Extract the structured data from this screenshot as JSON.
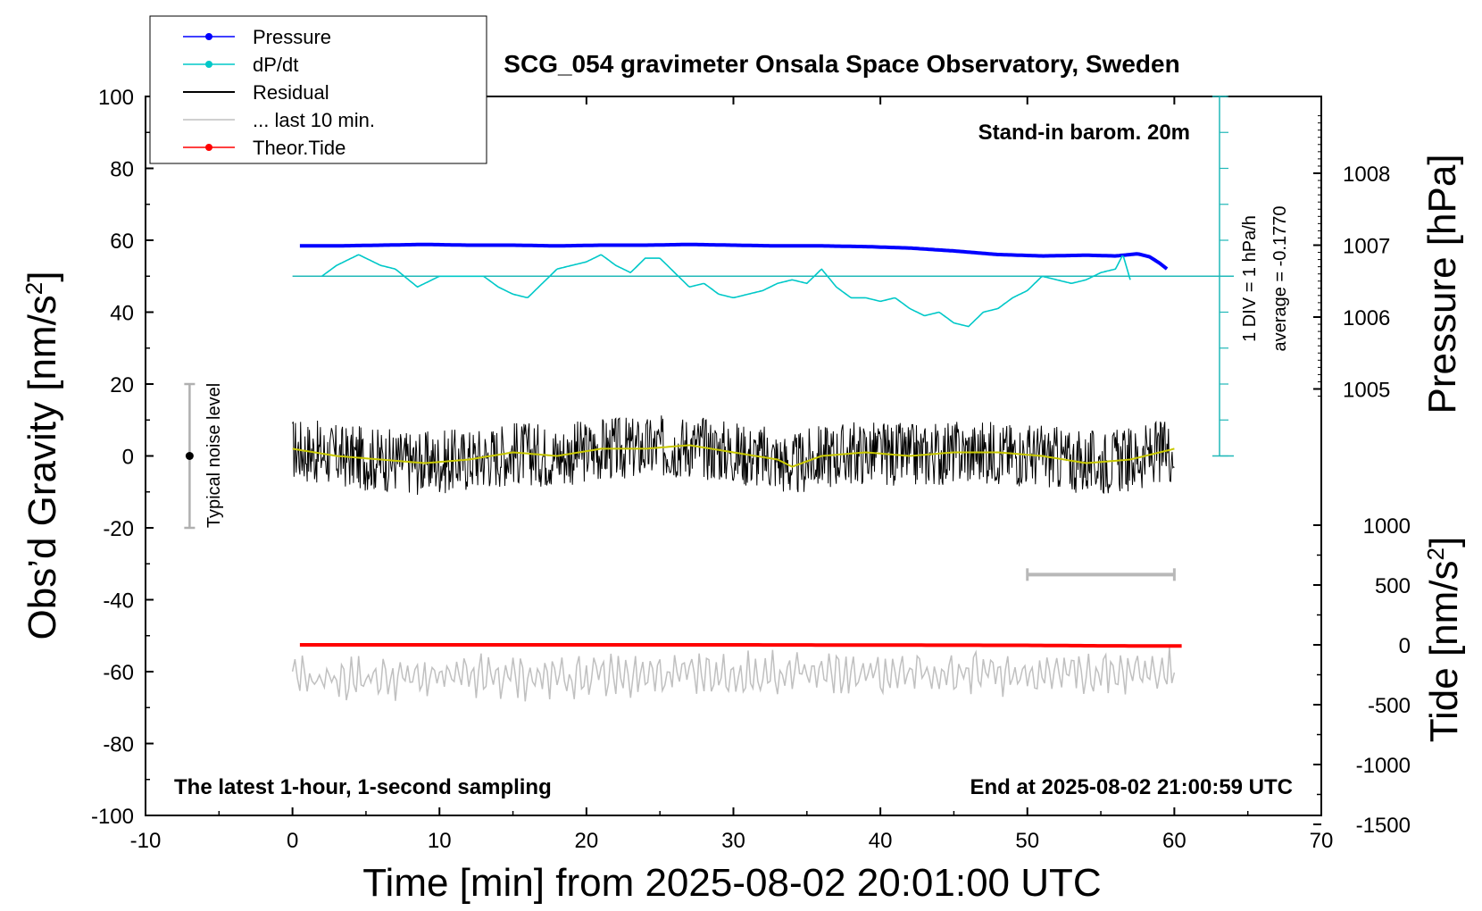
{
  "chart_data": {
    "type": "line",
    "title": "SCG_054 gravimeter Onsala Space Observatory, Sweden",
    "xlabel": "Time [min] from 2025-08-02 20:01:00 UTC",
    "ylabel_left": "Obs’d Gravity [nm/s",
    "ylabel_left_sup": "2",
    "ylabel_left_end": "]",
    "ylabel_right_pressure": "Pressure [hPa]",
    "ylabel_right_tide": "Tide [nm/s",
    "ylabel_right_tide_sup": "2",
    "ylabel_right_tide_end": "]",
    "xlim": [
      -10,
      70
    ],
    "ylim": [
      -100,
      100
    ],
    "x_ticks": [
      "-10",
      "0",
      "10",
      "20",
      "30",
      "40",
      "50",
      "60",
      "70"
    ],
    "y_ticks": [
      "-100",
      "-80",
      "-60",
      "-40",
      "-20",
      "0",
      "20",
      "40",
      "60",
      "80",
      "100"
    ],
    "pressure_axis": {
      "ticks": [
        "1005",
        "1006",
        "1007",
        "1008"
      ],
      "range": [
        1004,
        1009
      ]
    },
    "tide_axis": {
      "ticks": [
        "-1500",
        "-1000",
        "-500",
        "0",
        "500",
        "1000"
      ],
      "range": [
        -1500,
        1000
      ]
    },
    "legend": {
      "placement": "top-left",
      "entries": [
        {
          "label": "Pressure",
          "color": "#0000ff",
          "marker": true
        },
        {
          "label": "dP/dt",
          "color": "#00c8c8",
          "marker": true
        },
        {
          "label": "Residual",
          "color": "#000000",
          "marker": false
        },
        {
          "label": "... last 10 min.",
          "color": "#c0c0c0",
          "marker": false
        },
        {
          "label": "Theor.Tide",
          "color": "#ff0000",
          "marker": true
        }
      ]
    },
    "annotations": {
      "barometer": "Stand-in barom. 20m",
      "dpdt_scale": "1 DIV = 1 hPa/h",
      "dpdt_average": "average = -0.1770",
      "noise": "Typical noise level",
      "bottom_left": "The latest 1-hour, 1-second sampling",
      "bottom_right": "End at 2025-08-02 21:00:59 UTC"
    },
    "noise_bar": {
      "x": -7,
      "y_center": 0,
      "y_range": [
        -20,
        20
      ]
    },
    "last10_bar": {
      "x_range": [
        50,
        60
      ],
      "y": -33
    },
    "series": [
      {
        "name": "Pressure",
        "color": "#0000ff",
        "axis": "pressure_hPa",
        "x": [
          0.5,
          3,
          6,
          9,
          12,
          15,
          18,
          21,
          24,
          27,
          30,
          33,
          36,
          39,
          42,
          45,
          48,
          51,
          54,
          56,
          57.5,
          58.3,
          59,
          59.5
        ],
        "y": [
          1006.99,
          1006.99,
          1007.0,
          1007.01,
          1007.0,
          1007.0,
          1006.99,
          1007.0,
          1007.0,
          1007.01,
          1007.0,
          1006.99,
          1006.99,
          1006.98,
          1006.96,
          1006.92,
          1006.87,
          1006.85,
          1006.86,
          1006.85,
          1006.88,
          1006.84,
          1006.75,
          1006.67
        ]
      },
      {
        "name": "dP/dt",
        "color": "#00c8c8",
        "axis": "gravity_nm_s2",
        "x": [
          2,
          3,
          4.5,
          6,
          7,
          8.5,
          10,
          11,
          13,
          14,
          15,
          16,
          17,
          18,
          19,
          20,
          21,
          22,
          23,
          24,
          25,
          26,
          27,
          28,
          29,
          30,
          31,
          32,
          33,
          34,
          35,
          36,
          37,
          38,
          39,
          40,
          41,
          42,
          43,
          44,
          45,
          46,
          47,
          48,
          49,
          50,
          51,
          52,
          53,
          54,
          55,
          56,
          56.5,
          57
        ],
        "y": [
          50,
          53,
          56,
          53,
          52,
          47,
          50,
          50,
          50,
          47,
          45,
          44,
          48,
          52,
          53,
          54,
          56,
          53,
          51,
          55,
          55,
          51,
          47,
          48,
          45,
          44,
          45,
          46,
          48,
          49,
          48,
          52,
          47,
          44,
          44,
          43,
          44,
          41,
          39,
          40,
          37,
          36,
          40,
          41,
          44,
          46,
          50,
          49,
          48,
          49,
          51,
          52,
          56,
          49
        ]
      },
      {
        "name": "Residual",
        "color": "#000000",
        "axis": "gravity_nm_s2",
        "x": [
          0,
          3,
          6,
          9,
          12,
          15,
          18,
          21,
          24,
          27,
          30,
          33,
          34,
          36,
          39,
          42,
          45,
          48,
          51,
          54,
          57,
          60
        ],
        "y": [
          2,
          0,
          -1,
          -2,
          -1,
          1,
          0,
          2,
          2,
          3,
          1,
          -1,
          -3,
          0,
          1,
          0,
          1,
          1,
          0,
          -2,
          -1,
          2
        ]
      },
      {
        "name": "... last 10 min.",
        "color": "#c0c0c0",
        "axis": "gravity_nm_s2",
        "x": [
          0,
          60
        ],
        "y": [
          -62,
          -60
        ]
      },
      {
        "name": "Theor.Tide",
        "color": "#ff0000",
        "axis": "tide_nm_s2",
        "x": [
          0.5,
          10,
          20,
          30,
          40,
          50,
          55,
          60.5
        ],
        "y": [
          0,
          0,
          0,
          0,
          -2,
          -4,
          -8,
          -10
        ]
      }
    ]
  }
}
